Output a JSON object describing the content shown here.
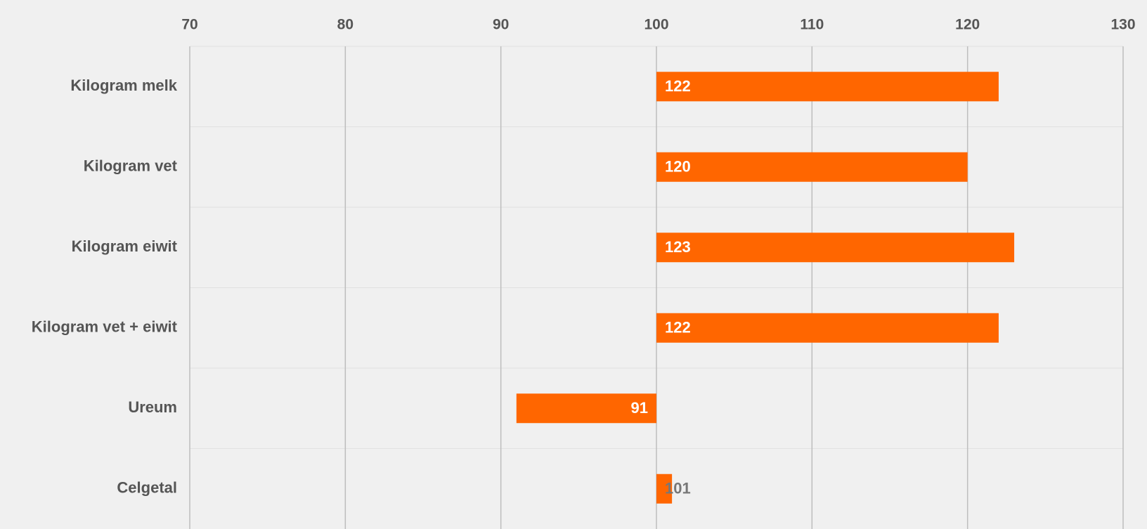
{
  "chart_data": {
    "type": "bar",
    "orientation": "horizontal",
    "title": "",
    "xlabel": "",
    "ylabel": "",
    "categories": [
      "Kilogram melk",
      "Kilogram vet",
      "Kilogram eiwit",
      "Kilogram vet + eiwit",
      "Ureum",
      "Celgetal"
    ],
    "values": [
      122,
      120,
      123,
      122,
      91,
      101
    ],
    "base": 100,
    "xlim": [
      70,
      130
    ],
    "xticks": [
      70,
      80,
      90,
      100,
      110,
      120,
      130
    ],
    "tick_labels": [
      "70",
      "80",
      "90",
      "100",
      "110",
      "120",
      "130"
    ],
    "data_labels": [
      "122",
      "120",
      "123",
      "122",
      "91",
      "101"
    ],
    "axis_position": "top",
    "grid": true,
    "legend": "none",
    "colors": {
      "bar": "#ff6600",
      "background": "#f0f0f0",
      "gridline": "#bdbdbd",
      "row_divider": "#e1e1e1",
      "label_inside": "#ffffff",
      "label_outside": "#777777",
      "text": "#555555"
    }
  }
}
